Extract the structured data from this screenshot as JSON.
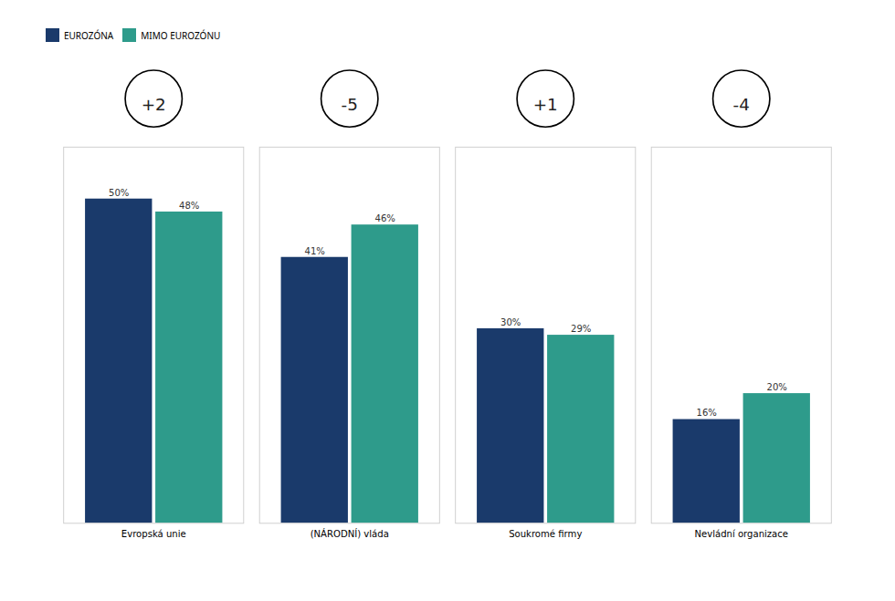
{
  "chart_data": {
    "type": "bar",
    "categories": [
      "Evropská unie",
      "(NÁRODNÍ) vláda",
      "Soukromé firmy",
      "Nevládní organizace"
    ],
    "series": [
      {
        "name": "EUROZÓNA",
        "color": "#1A3A6B",
        "values": [
          50,
          41,
          30,
          16
        ],
        "value_labels": [
          "50%",
          "41%",
          "30%",
          "16%"
        ]
      },
      {
        "name": "MIMO EUROZÓNU",
        "color": "#2E9B8B",
        "values": [
          48,
          46,
          29,
          20
        ],
        "value_labels": [
          "48%",
          "46%",
          "29%",
          "20%"
        ]
      }
    ],
    "annotations": [
      "+2",
      "-5",
      "+1",
      "-4"
    ],
    "ylim": [
      0,
      58
    ],
    "data_labels": true,
    "tick_labels": "x",
    "grid": false,
    "legend": "top"
  }
}
